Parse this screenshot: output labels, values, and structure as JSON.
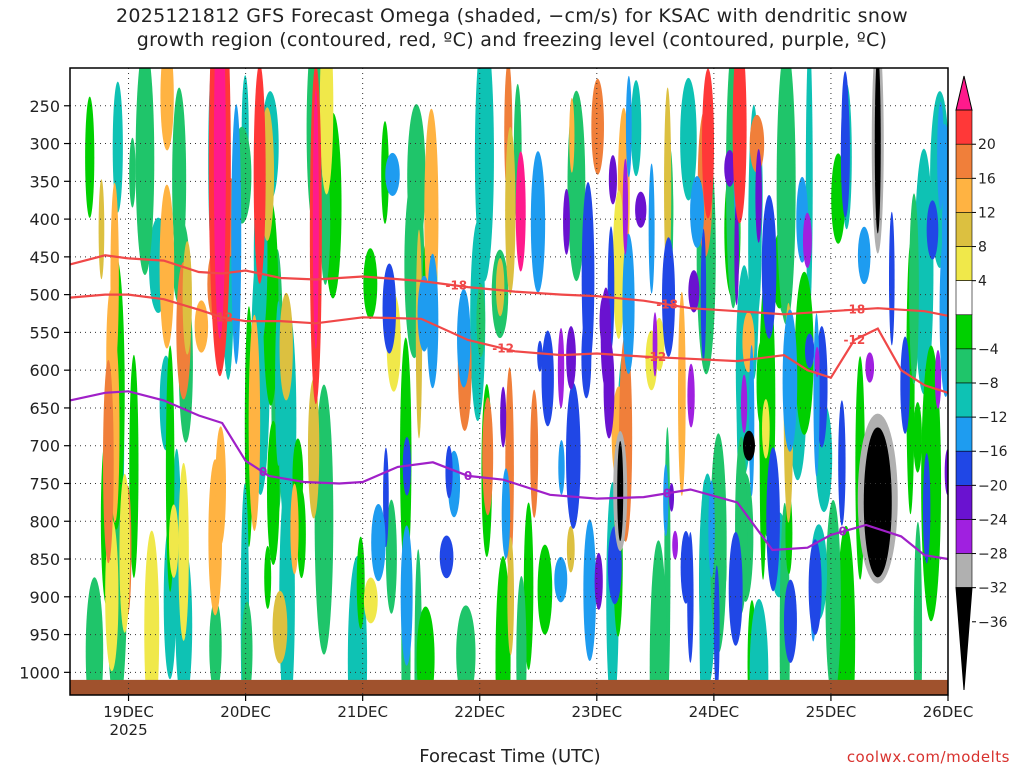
{
  "chart_data": {
    "type": "heatmap",
    "title_line1": "2025121812 GFS Forecast Omega (shaded, −cm/s) for KSAC with dendritic snow",
    "title_line2": "growth region (contoured, red, ºC) and freezing level (contoured, purple, ºC)",
    "xlabel": "Forecast Time (UTC)",
    "credit": "coolwx.com/modelts",
    "x_ticks": [
      {
        "x": 19,
        "label": "19DEC",
        "sub": "2025"
      },
      {
        "x": 20,
        "label": "20DEC",
        "sub": ""
      },
      {
        "x": 21,
        "label": "21DEC",
        "sub": ""
      },
      {
        "x": 22,
        "label": "22DEC",
        "sub": ""
      },
      {
        "x": 23,
        "label": "23DEC",
        "sub": ""
      },
      {
        "x": 24,
        "label": "24DEC",
        "sub": ""
      },
      {
        "x": 25,
        "label": "25DEC",
        "sub": ""
      },
      {
        "x": 26,
        "label": "26DEC",
        "sub": ""
      }
    ],
    "xlim": [
      18.5,
      26
    ],
    "ylim_pressure": [
      200,
      1030
    ],
    "y_ticks": [
      250,
      300,
      350,
      400,
      450,
      500,
      550,
      600,
      650,
      700,
      750,
      800,
      850,
      900,
      950,
      1000
    ],
    "colorbar": {
      "labels": [
        "20",
        "16",
        "12",
        "8",
        "4",
        "−4",
        "−8",
        "−12",
        "−16",
        "−20",
        "−24",
        "−28",
        "−32",
        "−36"
      ],
      "colors": [
        "#ff1a8c",
        "#ff3838",
        "#f07f3a",
        "#ffb342",
        "#dcc040",
        "#f0e84a",
        "#ffffff",
        "#00d000",
        "#1fc56a",
        "#0ec2b4",
        "#1e9cf0",
        "#2047e6",
        "#6a12d0",
        "#a020e0",
        "#b0b0b0",
        "#000000"
      ]
    },
    "dgz_top": {
      "label": "-18",
      "color": "#f04848",
      "x": [
        18.5,
        18.8,
        19.0,
        19.3,
        19.6,
        19.8,
        20.0,
        20.3,
        20.6,
        21.0,
        21.5,
        21.9,
        22.3,
        22.7,
        23.0,
        23.4,
        23.8,
        24.2,
        24.6,
        25.0,
        25.4,
        25.8,
        26.0
      ],
      "p": [
        460,
        448,
        452,
        455,
        470,
        472,
        468,
        478,
        480,
        476,
        482,
        490,
        496,
        500,
        502,
        508,
        518,
        522,
        526,
        522,
        518,
        522,
        528
      ]
    },
    "dgz_bottom": {
      "label": "-12",
      "color": "#f04848",
      "x": [
        18.5,
        18.8,
        19.0,
        19.3,
        19.6,
        19.8,
        20.0,
        20.3,
        20.6,
        21.0,
        21.5,
        21.9,
        22.3,
        22.7,
        23.0,
        23.4,
        23.8,
        24.2,
        24.6,
        24.8,
        25.0,
        25.2,
        25.4,
        25.6,
        25.8,
        26.0
      ],
      "p": [
        504,
        500,
        500,
        506,
        520,
        530,
        535,
        535,
        538,
        530,
        532,
        560,
        575,
        580,
        578,
        582,
        585,
        588,
        580,
        600,
        610,
        560,
        545,
        600,
        620,
        630
      ]
    },
    "freezing_level": {
      "label": "0",
      "color": "#a020c8",
      "x": [
        18.5,
        18.8,
        19.0,
        19.3,
        19.6,
        19.8,
        20.0,
        20.2,
        20.5,
        20.8,
        21.0,
        21.3,
        21.6,
        21.9,
        22.2,
        22.6,
        23.0,
        23.4,
        23.8,
        24.2,
        24.5,
        24.8,
        25.0,
        25.3,
        25.6,
        25.8,
        26.0
      ],
      "p": [
        640,
        630,
        628,
        640,
        660,
        670,
        720,
        740,
        748,
        750,
        748,
        728,
        722,
        740,
        745,
        765,
        770,
        768,
        758,
        775,
        838,
        835,
        818,
        805,
        820,
        845,
        850
      ]
    }
  }
}
